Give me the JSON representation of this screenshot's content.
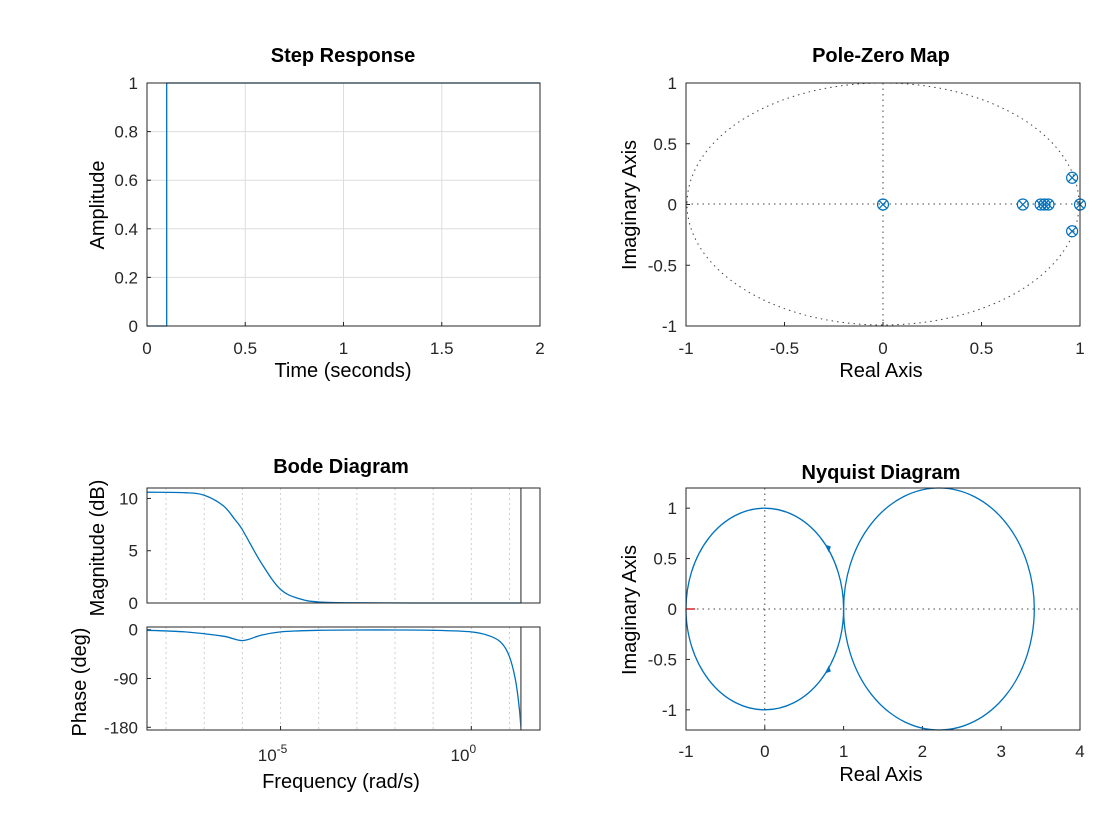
{
  "figure": {
    "background": "#ffffff",
    "line_color": "#0072bd",
    "grid_color": "#dddddd",
    "axis_color": "#262626",
    "marker_red": "#d62728"
  },
  "chart_data": [
    {
      "type": "line",
      "title": "Step Response",
      "xlabel": "Time (seconds)",
      "ylabel": "Amplitude",
      "xlim": [
        0,
        2
      ],
      "ylim": [
        0,
        1
      ],
      "xticks": [
        "0",
        "0.5",
        "1",
        "1.5",
        "2"
      ],
      "yticks": [
        "0",
        "0.2",
        "0.4",
        "0.6",
        "0.8",
        "1"
      ],
      "grid": true,
      "series": [
        {
          "x": [
            0,
            0.1,
            0.1,
            2
          ],
          "y": [
            0,
            0,
            1,
            1
          ]
        }
      ]
    },
    {
      "type": "scatter",
      "title": "Pole-Zero Map",
      "xlabel": "Real Axis",
      "ylabel": "Imaginary Axis",
      "xlim": [
        -1,
        1
      ],
      "ylim": [
        -1,
        1
      ],
      "xticks": [
        "-1",
        "-0.5",
        "0",
        "0.5",
        "1"
      ],
      "yticks": [
        "-1",
        "-0.5",
        "0",
        "0.5",
        "1"
      ],
      "unit_circle": true,
      "poles_zeros": [
        {
          "re": 0,
          "im": 0
        },
        {
          "re": 0.71,
          "im": 0
        },
        {
          "re": 0.8,
          "im": 0
        },
        {
          "re": 0.82,
          "im": 0
        },
        {
          "re": 0.84,
          "im": 0
        },
        {
          "re": 0.96,
          "im": 0.22
        },
        {
          "re": 0.96,
          "im": -0.22
        },
        {
          "re": 1.0,
          "im": 0
        }
      ]
    },
    {
      "type": "line",
      "title": "Bode Diagram",
      "xlabel": "Frequency  (rad/s)",
      "xscale": "log",
      "xlim_log10": [
        -8.5,
        1.8
      ],
      "xtick_labels": [
        {
          "base": "10",
          "exp": "-5",
          "log": -5
        },
        {
          "base": "10",
          "exp": "0",
          "log": 0
        }
      ],
      "magnitude": {
        "ylabel": "Magnitude (dB)",
        "ylim": [
          0,
          11
        ],
        "yticks": [
          "0",
          "5",
          "10"
        ],
        "series": [
          {
            "log_w": [
              -8.5,
              -7.5,
              -7,
              -6.5,
              -6.2,
              -6,
              -5.5,
              -5,
              -4.5,
              -4,
              -3,
              0,
              1.3
            ],
            "db": [
              10.6,
              10.55,
              10.3,
              9.3,
              8,
              7,
              3.8,
              1.3,
              0.4,
              0.1,
              0.02,
              0,
              0
            ]
          }
        ]
      },
      "phase": {
        "ylabel": "Phase (deg)",
        "ylim": [
          -185,
          5
        ],
        "yticks": [
          "-180",
          "-90",
          "0"
        ],
        "series": [
          {
            "log_w": [
              -8.5,
              -7.5,
              -6.5,
              -6,
              -5.5,
              -5,
              -4.5,
              -4,
              -3,
              -2,
              -1,
              0,
              0.5,
              0.8,
              1.0,
              1.15,
              1.25,
              1.3
            ],
            "deg": [
              -1,
              -4,
              -12,
              -20,
              -10,
              -4,
              -2,
              -1,
              -0.5,
              -0.5,
              -1,
              -4,
              -12,
              -25,
              -50,
              -90,
              -140,
              -180
            ]
          }
        ]
      },
      "nyquist_freq_log10": 1.3
    },
    {
      "type": "line",
      "title": "Nyquist Diagram",
      "xlabel": "Real Axis",
      "ylabel": "Imaginary Axis",
      "xlim": [
        -1,
        4
      ],
      "ylim": [
        -1.2,
        1.2
      ],
      "xticks": [
        "-1",
        "0",
        "1",
        "2",
        "3",
        "4"
      ],
      "yticks": [
        "-1",
        "-0.5",
        "0",
        "0.5",
        "1"
      ],
      "critical_point": [
        -1,
        0
      ],
      "curves": [
        {
          "shape": "ellipse",
          "cx": 0,
          "cy": 0,
          "rx": 1,
          "ry": 1
        },
        {
          "shape": "ellipse",
          "cx": 2.21,
          "cy": 0,
          "rx": 1.21,
          "ry": 1.2
        }
      ],
      "arrows": [
        {
          "x": 0.8,
          "y": 0.6,
          "dir": "down"
        },
        {
          "x": 0.8,
          "y": -0.6,
          "dir": "up"
        }
      ]
    }
  ]
}
